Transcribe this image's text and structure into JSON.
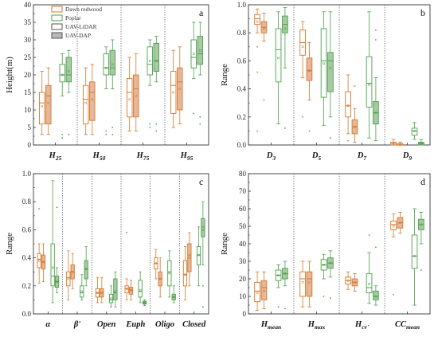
{
  "legend": {
    "entries": [
      {
        "label": "Dawn redwood",
        "color": "#d4782a"
      },
      {
        "label": "Poplar",
        "color": "#4aa04a"
      },
      {
        "label": "UAV-LiDAR",
        "fill": "#ffffff"
      },
      {
        "label": "UAV-DAP",
        "fill": "#b9b9b9"
      }
    ]
  },
  "colors": {
    "dawn_redwood": "#d4782a",
    "dawn_redwood_fill": "#e6b79a",
    "poplar": "#4aa04a",
    "poplar_fill": "#a9c9a4"
  },
  "chart_data": [
    {
      "type": "box",
      "panel_label": "a",
      "ylabel": "Height(m)",
      "ylim": [
        0,
        40
      ],
      "yticks": [
        "0",
        "5",
        "10",
        "15",
        "20",
        "25",
        "30",
        "35",
        "40"
      ],
      "tick_values": [
        0,
        5,
        10,
        15,
        20,
        25,
        30,
        35,
        40
      ],
      "categories": [
        {
          "main": "H",
          "sub": "25"
        },
        {
          "main": "H",
          "sub": "50"
        },
        {
          "main": "H",
          "sub": "75"
        },
        {
          "main": "H",
          "sub": "95"
        }
      ],
      "series_order": [
        "Dawn redwood / UAV-LiDAR",
        "Dawn redwood / UAV-DAP",
        "Poplar / UAV-LiDAR",
        "Poplar / UAV-DAP"
      ],
      "boxes": [
        [
          {
            "min": 3,
            "q1": 6,
            "median": 12,
            "q3": 15,
            "max": 21,
            "mean": 11,
            "outliers": []
          },
          {
            "min": 3,
            "q1": 6,
            "median": 14,
            "q3": 17,
            "max": 22,
            "mean": 12,
            "outliers": []
          },
          {
            "min": 14,
            "q1": 18,
            "median": 20,
            "q3": 23,
            "max": 26,
            "mean": 20,
            "outliers": [
              2,
              3
            ]
          },
          {
            "min": 15,
            "q1": 18,
            "median": 20,
            "q3": 25,
            "max": 27,
            "mean": 21,
            "outliers": [
              3
            ]
          }
        ],
        [
          {
            "min": 3,
            "q1": 6,
            "median": 13,
            "q3": 17,
            "max": 22,
            "mean": 12,
            "outliers": []
          },
          {
            "min": 3,
            "q1": 7,
            "median": 15,
            "q3": 18,
            "max": 23,
            "mean": 13,
            "outliers": []
          },
          {
            "min": 16,
            "q1": 20,
            "median": 22,
            "q3": 26,
            "max": 28,
            "mean": 22,
            "outliers": [
              3,
              4
            ]
          },
          {
            "min": 16,
            "q1": 20,
            "median": 22,
            "q3": 27,
            "max": 30,
            "mean": 23,
            "outliers": [
              3,
              5
            ]
          }
        ],
        [
          {
            "min": 4,
            "q1": 8,
            "median": 15,
            "q3": 19,
            "max": 25,
            "mean": 13,
            "outliers": []
          },
          {
            "min": 4,
            "q1": 8,
            "median": 16,
            "q3": 20,
            "max": 26,
            "mean": 14,
            "outliers": []
          },
          {
            "min": 17,
            "q1": 20,
            "median": 23,
            "q3": 28,
            "max": 30,
            "mean": 24,
            "outliers": [
              5,
              6
            ]
          },
          {
            "min": 18,
            "q1": 21,
            "median": 24,
            "q3": 29,
            "max": 31,
            "mean": 24,
            "outliers": [
              4,
              6
            ]
          }
        ],
        [
          {
            "min": 5,
            "q1": 9,
            "median": 17,
            "q3": 21,
            "max": 27,
            "mean": 15,
            "outliers": []
          },
          {
            "min": 6,
            "q1": 10,
            "median": 18,
            "q3": 22,
            "max": 28,
            "mean": 16,
            "outliers": []
          },
          {
            "min": 19,
            "q1": 22,
            "median": 25,
            "q3": 30,
            "max": 35,
            "mean": 26,
            "outliers": [
              9
            ]
          },
          {
            "min": 20,
            "q1": 23,
            "median": 26,
            "q3": 31,
            "max": 35,
            "mean": 27,
            "outliers": [
              6,
              8
            ]
          }
        ]
      ]
    },
    {
      "type": "box",
      "panel_label": "b",
      "ylabel": "Range",
      "ylim": [
        0,
        1.0
      ],
      "yticks": [
        "0.0",
        "0.2",
        "0.4",
        "0.6",
        "0.8",
        "1.0"
      ],
      "tick_values": [
        0,
        0.2,
        0.4,
        0.6,
        0.8,
        1.0
      ],
      "categories": [
        {
          "main": "D",
          "sub": "3"
        },
        {
          "main": "D",
          "sub": "5"
        },
        {
          "main": "D",
          "sub": "7"
        },
        {
          "main": "D",
          "sub": "9"
        }
      ],
      "series_order": [
        "Dawn redwood / UAV-LiDAR",
        "Dawn redwood / UAV-DAP",
        "Poplar / UAV-LiDAR",
        "Poplar / UAV-DAP"
      ],
      "boxes": [
        [
          {
            "min": 0.8,
            "q1": 0.86,
            "median": 0.9,
            "q3": 0.93,
            "max": 0.97,
            "mean": 0.88,
            "outliers": [
              0.7,
              0.52,
              0.1
            ]
          },
          {
            "min": 0.74,
            "q1": 0.8,
            "median": 0.84,
            "q3": 0.88,
            "max": 0.94,
            "mean": 0.83,
            "outliers": [
              0.32
            ]
          },
          {
            "min": 0.15,
            "q1": 0.45,
            "median": 0.68,
            "q3": 0.83,
            "max": 0.95,
            "mean": 0.62,
            "outliers": []
          },
          {
            "min": 0.55,
            "q1": 0.8,
            "median": 0.86,
            "q3": 0.92,
            "max": 0.98,
            "mean": 0.83,
            "outliers": [
              0.12
            ]
          }
        ],
        [
          {
            "min": 0.48,
            "q1": 0.64,
            "median": 0.73,
            "q3": 0.82,
            "max": 0.88,
            "mean": 0.7,
            "outliers": [
              0.2
            ]
          },
          {
            "min": 0.32,
            "q1": 0.46,
            "median": 0.53,
            "q3": 0.62,
            "max": 0.73,
            "mean": 0.53,
            "outliers": [
              0.1
            ]
          },
          {
            "min": 0.14,
            "q1": 0.34,
            "median": 0.6,
            "q3": 0.83,
            "max": 0.95,
            "mean": 0.58,
            "outliers": []
          },
          {
            "min": 0.2,
            "q1": 0.38,
            "median": 0.6,
            "q3": 0.66,
            "max": 0.95,
            "mean": 0.55,
            "outliers": [
              0.05
            ]
          }
        ],
        [
          {
            "min": 0.08,
            "q1": 0.2,
            "median": 0.28,
            "q3": 0.38,
            "max": 0.5,
            "mean": 0.28,
            "outliers": [
              0.03
            ]
          },
          {
            "min": 0.02,
            "q1": 0.08,
            "median": 0.13,
            "q3": 0.18,
            "max": 0.26,
            "mean": 0.13,
            "outliers": [
              0.42
            ]
          },
          {
            "min": 0.05,
            "q1": 0.27,
            "median": 0.44,
            "q3": 0.63,
            "max": 0.95,
            "mean": 0.43,
            "outliers": []
          },
          {
            "min": 0.03,
            "q1": 0.15,
            "median": 0.23,
            "q3": 0.31,
            "max": 0.48,
            "mean": 0.23,
            "outliers": [
              0.82,
              0.75
            ]
          }
        ],
        [
          {
            "min": 0,
            "q1": 0,
            "median": 0.01,
            "q3": 0.02,
            "max": 0.04,
            "mean": 0.01,
            "outliers": []
          },
          {
            "min": 0,
            "q1": 0,
            "median": 0,
            "q3": 0.01,
            "max": 0.02,
            "mean": 0,
            "outliers": []
          },
          {
            "min": 0.04,
            "q1": 0.07,
            "median": 0.1,
            "q3": 0.12,
            "max": 0.16,
            "mean": 0.1,
            "outliers": []
          },
          {
            "min": 0,
            "q1": 0,
            "median": 0.01,
            "q3": 0.02,
            "max": 0.04,
            "mean": 0.01,
            "outliers": []
          }
        ]
      ]
    },
    {
      "type": "box",
      "panel_label": "c",
      "ylabel": "Range",
      "ylim": [
        0,
        1.0
      ],
      "yticks": [
        "0.0",
        "0.2",
        "0.4",
        "0.6",
        "0.8",
        "1.0"
      ],
      "tick_values": [
        0,
        0.2,
        0.4,
        0.6,
        0.8,
        1.0
      ],
      "categories": [
        {
          "main": "α",
          "sub": ""
        },
        {
          "main": "β'",
          "sub": ""
        },
        {
          "main": "Open",
          "sub": ""
        },
        {
          "main": "Euph",
          "sub": ""
        },
        {
          "main": "Oligo",
          "sub": ""
        },
        {
          "main": "Closed",
          "sub": ""
        }
      ],
      "series_order": [
        "Dawn redwood / UAV-LiDAR",
        "Dawn redwood / UAV-DAP",
        "Poplar / UAV-LiDAR",
        "Poplar / UAV-DAP"
      ],
      "boxes": [
        [
          {
            "min": 0.22,
            "q1": 0.33,
            "median": 0.39,
            "q3": 0.43,
            "max": 0.5,
            "mean": 0.38,
            "outliers": [
              0.75
            ]
          },
          {
            "min": 0.23,
            "q1": 0.32,
            "median": 0.37,
            "q3": 0.42,
            "max": 0.5,
            "mean": 0.37,
            "outliers": []
          },
          {
            "min": 0.08,
            "q1": 0.2,
            "median": 0.27,
            "q3": 0.5,
            "max": 0.95,
            "mean": 0.33,
            "outliers": []
          },
          {
            "min": 0.15,
            "q1": 0.19,
            "median": 0.23,
            "q3": 0.27,
            "max": 0.33,
            "mean": 0.23,
            "outliers": [
              0.76
            ]
          }
        ],
        [
          {
            "min": 0.1,
            "q1": 0.2,
            "median": 0.26,
            "q3": 0.3,
            "max": 0.45,
            "mean": 0.25,
            "outliers": []
          },
          {
            "min": 0.18,
            "q1": 0.25,
            "median": 0.3,
            "q3": 0.35,
            "max": 0.43,
            "mean": 0.3,
            "outliers": []
          },
          {
            "min": 0.1,
            "q1": 0.12,
            "median": 0.15,
            "q3": 0.2,
            "max": 0.28,
            "mean": 0.16,
            "outliers": []
          },
          {
            "min": 0.2,
            "q1": 0.25,
            "median": 0.32,
            "q3": 0.38,
            "max": 0.48,
            "mean": 0.32,
            "outliers": []
          }
        ],
        [
          {
            "min": 0.08,
            "q1": 0.12,
            "median": 0.15,
            "q3": 0.18,
            "max": 0.26,
            "mean": 0.15,
            "outliers": []
          },
          {
            "min": 0.08,
            "q1": 0.12,
            "median": 0.15,
            "q3": 0.18,
            "max": 0.26,
            "mean": 0.15,
            "outliers": []
          },
          {
            "min": 0.05,
            "q1": 0.08,
            "median": 0.1,
            "q3": 0.14,
            "max": 0.2,
            "mean": 0.11,
            "outliers": []
          },
          {
            "min": 0.05,
            "q1": 0.1,
            "median": 0.15,
            "q3": 0.25,
            "max": 0.3,
            "mean": 0.16,
            "outliers": []
          }
        ],
        [
          {
            "min": 0.1,
            "q1": 0.15,
            "median": 0.18,
            "q3": 0.2,
            "max": 0.25,
            "mean": 0.18,
            "outliers": [
              0.58
            ]
          },
          {
            "min": 0.1,
            "q1": 0.14,
            "median": 0.17,
            "q3": 0.19,
            "max": 0.24,
            "mean": 0.17,
            "outliers": []
          },
          {
            "min": 0.08,
            "q1": 0.12,
            "median": 0.16,
            "q3": 0.24,
            "max": 0.3,
            "mean": 0.17,
            "outliers": []
          },
          {
            "min": 0.06,
            "q1": 0.07,
            "median": 0.08,
            "q3": 0.09,
            "max": 0.1,
            "mean": 0.08,
            "outliers": []
          }
        ],
        [
          {
            "min": 0.25,
            "q1": 0.32,
            "median": 0.36,
            "q3": 0.4,
            "max": 0.46,
            "mean": 0.36,
            "outliers": []
          },
          {
            "min": 0.12,
            "q1": 0.2,
            "median": 0.25,
            "q3": 0.3,
            "max": 0.4,
            "mean": 0.25,
            "outliers": []
          },
          {
            "min": 0.12,
            "q1": 0.2,
            "median": 0.3,
            "q3": 0.38,
            "max": 0.45,
            "mean": 0.29,
            "outliers": []
          },
          {
            "min": 0.08,
            "q1": 0.1,
            "median": 0.12,
            "q3": 0.14,
            "max": 0.2,
            "mean": 0.12,
            "outliers": []
          }
        ],
        [
          {
            "min": 0.1,
            "q1": 0.2,
            "median": 0.28,
            "q3": 0.38,
            "max": 0.48,
            "mean": 0.28,
            "outliers": []
          },
          {
            "min": 0.2,
            "q1": 0.3,
            "median": 0.42,
            "q3": 0.5,
            "max": 0.58,
            "mean": 0.4,
            "outliers": []
          },
          {
            "min": 0.2,
            "q1": 0.35,
            "median": 0.42,
            "q3": 0.48,
            "max": 0.62,
            "mean": 0.42,
            "outliers": []
          },
          {
            "min": 0.35,
            "q1": 0.55,
            "median": 0.62,
            "q3": 0.68,
            "max": 0.8,
            "mean": 0.6,
            "outliers": [
              0.2,
              0.05
            ]
          }
        ]
      ]
    },
    {
      "type": "box",
      "panel_label": "d",
      "ylabel": "Range",
      "ylim": [
        0,
        80
      ],
      "yticks": [
        "0",
        "10",
        "20",
        "30",
        "40",
        "50",
        "60",
        "70",
        "80"
      ],
      "tick_values": [
        0,
        10,
        20,
        30,
        40,
        50,
        60,
        70,
        80
      ],
      "categories": [
        {
          "main": "H",
          "sub": "mean"
        },
        {
          "main": "H",
          "sub": "max"
        },
        {
          "main": "H",
          "sub": "cv'"
        },
        {
          "main": "CC",
          "sub": "mean"
        }
      ],
      "series_order": [
        "Dawn redwood / UAV-LiDAR",
        "Dawn redwood / UAV-DAP",
        "Poplar / UAV-LiDAR",
        "Poplar / UAV-DAP"
      ],
      "boxes": [
        [
          {
            "min": 2,
            "q1": 7,
            "median": 13,
            "q3": 18,
            "max": 24,
            "mean": 12,
            "outliers": []
          },
          {
            "min": 3,
            "q1": 8,
            "median": 15,
            "q3": 19,
            "max": 24,
            "mean": 13,
            "outliers": []
          },
          {
            "min": 15,
            "q1": 19,
            "median": 22,
            "q3": 25,
            "max": 28,
            "mean": 22,
            "outliers": [
              4
            ]
          },
          {
            "min": 16,
            "q1": 20,
            "median": 23,
            "q3": 26,
            "max": 30,
            "mean": 23,
            "outliers": [
              3
            ]
          }
        ],
        [
          {
            "min": 4,
            "q1": 10,
            "median": 20,
            "q3": 24,
            "max": 30,
            "mean": 18,
            "outliers": []
          },
          {
            "min": 4,
            "q1": 10,
            "median": 20,
            "q3": 24,
            "max": 30,
            "mean": 18,
            "outliers": []
          },
          {
            "min": 20,
            "q1": 25,
            "median": 28,
            "q3": 31,
            "max": 34,
            "mean": 28,
            "outliers": [
              10
            ]
          },
          {
            "min": 21,
            "q1": 26,
            "median": 29,
            "q3": 32,
            "max": 36,
            "mean": 29,
            "outliers": [
              9
            ]
          }
        ],
        [
          {
            "min": 14,
            "q1": 17,
            "median": 19,
            "q3": 21,
            "max": 24,
            "mean": 19,
            "outliers": []
          },
          {
            "min": 13,
            "q1": 16,
            "median": 18,
            "q3": 20,
            "max": 23,
            "mean": 18,
            "outliers": []
          },
          {
            "min": 6,
            "q1": 12,
            "median": 15,
            "q3": 23,
            "max": 35,
            "mean": 17,
            "outliers": [
              45
            ]
          },
          {
            "min": 5,
            "q1": 8,
            "median": 10,
            "q3": 13,
            "max": 16,
            "mean": 10,
            "outliers": [
              38
            ]
          }
        ],
        [
          {
            "min": 44,
            "q1": 48,
            "median": 51,
            "q3": 53,
            "max": 57,
            "mean": 50,
            "outliers": [
              11
            ]
          },
          {
            "min": 46,
            "q1": 49,
            "median": 52,
            "q3": 55,
            "max": 58,
            "mean": 52,
            "outliers": []
          },
          {
            "min": 5,
            "q1": 26,
            "median": 33,
            "q3": 45,
            "max": 60,
            "mean": 33,
            "outliers": []
          },
          {
            "min": 40,
            "q1": 48,
            "median": 51,
            "q3": 54,
            "max": 58,
            "mean": 51,
            "outliers": [
              25
            ]
          }
        ]
      ]
    }
  ]
}
